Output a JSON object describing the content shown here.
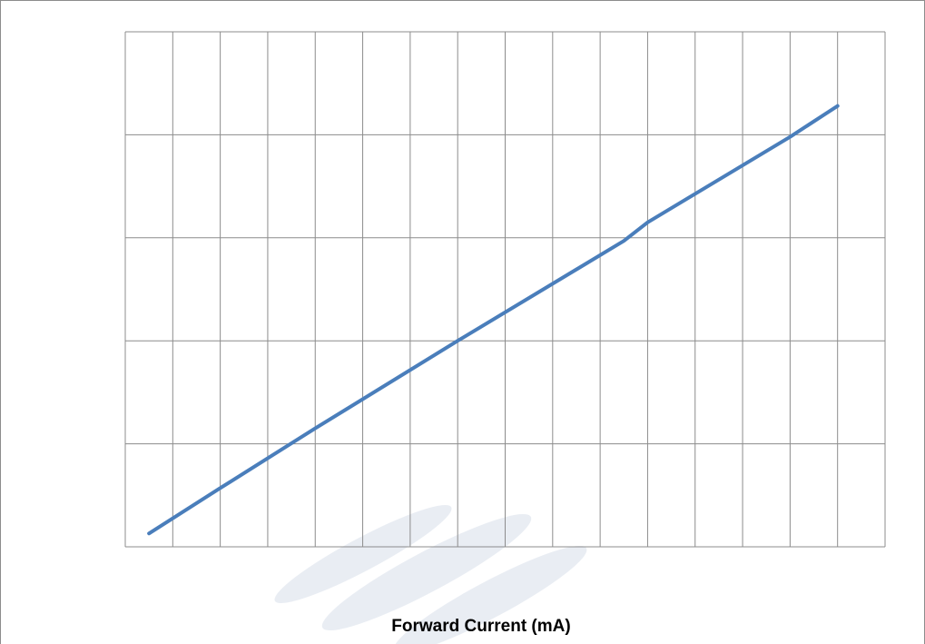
{
  "chart_data": {
    "type": "line",
    "x_label": "Forward Current (mA)",
    "x": [
      0.5,
      2,
      4,
      7,
      10.5,
      11,
      14,
      15
    ],
    "series": [
      {
        "color": "#4a7ebb",
        "values": [
          0.13,
          0.57,
          1.15,
          2.0,
          2.97,
          3.15,
          3.98,
          4.28
        ]
      }
    ],
    "xlim": [
      0,
      16
    ],
    "xticks": [
      0,
      1,
      2,
      3,
      4,
      5,
      6,
      7,
      8,
      9,
      10,
      11,
      12,
      13,
      14,
      15,
      16
    ],
    "ylim": [
      0,
      5
    ],
    "yticks": [
      0,
      1,
      2,
      3,
      4,
      5
    ],
    "grid": true
  }
}
